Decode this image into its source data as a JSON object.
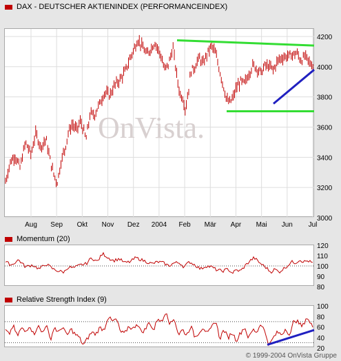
{
  "chart_data": [
    {
      "type": "candlestick",
      "title": "DAX  - DEUTSCHER AKTIENINDEX (PERFORMANCEINDEX)",
      "x_ticks": [
        "Aug",
        "Sep",
        "Okt",
        "Nov",
        "Dez",
        "2004",
        "Feb",
        "Mär",
        "Apr",
        "Mai",
        "Jun",
        "Jul"
      ],
      "y_ticks": [
        3000,
        3200,
        3400,
        3600,
        3800,
        4000,
        4200
      ],
      "ylim": [
        3000,
        4250
      ],
      "watermark": "OnVista.",
      "keypoints": [
        [
          0,
          3220
        ],
        [
          8,
          3370
        ],
        [
          15,
          3410
        ],
        [
          22,
          3330
        ],
        [
          30,
          3500
        ],
        [
          38,
          3420
        ],
        [
          45,
          3560
        ],
        [
          52,
          3470
        ],
        [
          60,
          3520
        ],
        [
          64,
          3420
        ],
        [
          70,
          3300
        ],
        [
          76,
          3230
        ],
        [
          82,
          3380
        ],
        [
          88,
          3470
        ],
        [
          92,
          3560
        ],
        [
          98,
          3620
        ],
        [
          104,
          3580
        ],
        [
          110,
          3640
        ],
        [
          118,
          3520
        ],
        [
          124,
          3690
        ],
        [
          130,
          3680
        ],
        [
          138,
          3760
        ],
        [
          145,
          3830
        ],
        [
          152,
          3810
        ],
        [
          160,
          3880
        ],
        [
          168,
          3920
        ],
        [
          175,
          3970
        ],
        [
          182,
          4060
        ],
        [
          188,
          4120
        ],
        [
          193,
          4180
        ],
        [
          200,
          4130
        ],
        [
          206,
          4080
        ],
        [
          212,
          4120
        ],
        [
          218,
          4160
        ],
        [
          226,
          4080
        ],
        [
          232,
          3980
        ],
        [
          238,
          4020
        ],
        [
          244,
          4130
        ],
        [
          249,
          3960
        ],
        [
          254,
          3820
        ],
        [
          258,
          3800
        ],
        [
          262,
          3720
        ],
        [
          266,
          3820
        ],
        [
          270,
          3970
        ],
        [
          276,
          4000
        ],
        [
          282,
          4060
        ],
        [
          288,
          4020
        ],
        [
          294,
          4090
        ],
        [
          300,
          4140
        ],
        [
          305,
          4100
        ],
        [
          309,
          4030
        ],
        [
          313,
          3950
        ],
        [
          318,
          3860
        ],
        [
          322,
          3780
        ],
        [
          326,
          3760
        ],
        [
          331,
          3790
        ],
        [
          336,
          3860
        ],
        [
          342,
          3900
        ],
        [
          348,
          3890
        ],
        [
          354,
          3950
        ],
        [
          360,
          4010
        ],
        [
          366,
          3990
        ],
        [
          372,
          3960
        ],
        [
          378,
          4010
        ],
        [
          384,
          4000
        ],
        [
          390,
          3980
        ],
        [
          396,
          4040
        ],
        [
          402,
          4060
        ],
        [
          410,
          4070
        ],
        [
          418,
          4080
        ],
        [
          424,
          4090
        ],
        [
          430,
          4040
        ],
        [
          436,
          4070
        ],
        [
          442,
          4030
        ],
        [
          449,
          4000
        ]
      ],
      "lines": [
        {
          "color": "#33dd33",
          "points": [
            [
              250,
              4175
            ],
            [
              449,
              4140
            ]
          ]
        },
        {
          "color": "#33dd33",
          "points": [
            [
              322,
              3705
            ],
            [
              449,
              3705
            ]
          ]
        },
        {
          "color": "#2020c0",
          "points": [
            [
              390,
              3755
            ],
            [
              449,
              3980
            ]
          ]
        }
      ]
    },
    {
      "type": "line",
      "title": "Momentum (20)",
      "y_ticks": [
        80,
        90,
        100,
        110,
        120
      ],
      "ylim": [
        80,
        120
      ],
      "reference": 100,
      "keypoints": [
        [
          0,
          104
        ],
        [
          10,
          101
        ],
        [
          20,
          106
        ],
        [
          30,
          99
        ],
        [
          40,
          101
        ],
        [
          50,
          97
        ],
        [
          60,
          102
        ],
        [
          70,
          97
        ],
        [
          78,
          95
        ],
        [
          86,
          94
        ],
        [
          92,
          99
        ],
        [
          100,
          98
        ],
        [
          110,
          101
        ],
        [
          118,
          102
        ],
        [
          126,
          108
        ],
        [
          134,
          104
        ],
        [
          142,
          112
        ],
        [
          150,
          108
        ],
        [
          158,
          105
        ],
        [
          166,
          107
        ],
        [
          174,
          103
        ],
        [
          182,
          104
        ],
        [
          190,
          108
        ],
        [
          198,
          106
        ],
        [
          206,
          104
        ],
        [
          214,
          102
        ],
        [
          222,
          104
        ],
        [
          230,
          103
        ],
        [
          238,
          100
        ],
        [
          246,
          103
        ],
        [
          254,
          103
        ],
        [
          260,
          99
        ],
        [
          268,
          104
        ],
        [
          276,
          101
        ],
        [
          284,
          97
        ],
        [
          292,
          100
        ],
        [
          300,
          99
        ],
        [
          308,
          96
        ],
        [
          316,
          95
        ],
        [
          324,
          97
        ],
        [
          330,
          93
        ],
        [
          336,
          96
        ],
        [
          342,
          95
        ],
        [
          350,
          101
        ],
        [
          356,
          105
        ],
        [
          362,
          108
        ],
        [
          368,
          104
        ],
        [
          374,
          101
        ],
        [
          380,
          98
        ],
        [
          386,
          94
        ],
        [
          392,
          97
        ],
        [
          398,
          94
        ],
        [
          404,
          97
        ],
        [
          410,
          100
        ],
        [
          416,
          104
        ],
        [
          422,
          103
        ],
        [
          428,
          106
        ],
        [
          434,
          104
        ],
        [
          440,
          105
        ],
        [
          449,
          102
        ]
      ]
    },
    {
      "type": "line",
      "title": "Relative Strength Index (9)",
      "y_ticks": [
        20,
        40,
        60,
        80,
        100
      ],
      "ylim": [
        20,
        100
      ],
      "reference_lines": [
        30,
        70
      ],
      "keypoints": [
        [
          0,
          55
        ],
        [
          6,
          45
        ],
        [
          12,
          63
        ],
        [
          18,
          42
        ],
        [
          24,
          58
        ],
        [
          30,
          50
        ],
        [
          36,
          64
        ],
        [
          42,
          45
        ],
        [
          48,
          63
        ],
        [
          54,
          48
        ],
        [
          60,
          65
        ],
        [
          66,
          35
        ],
        [
          72,
          60
        ],
        [
          78,
          48
        ],
        [
          84,
          62
        ],
        [
          90,
          42
        ],
        [
          96,
          56
        ],
        [
          102,
          46
        ],
        [
          108,
          40
        ],
        [
          114,
          25
        ],
        [
          120,
          38
        ],
        [
          126,
          50
        ],
        [
          132,
          46
        ],
        [
          138,
          59
        ],
        [
          144,
          54
        ],
        [
          150,
          80
        ],
        [
          156,
          70
        ],
        [
          162,
          75
        ],
        [
          168,
          50
        ],
        [
          174,
          47
        ],
        [
          180,
          62
        ],
        [
          186,
          55
        ],
        [
          192,
          68
        ],
        [
          198,
          50
        ],
        [
          204,
          55
        ],
        [
          210,
          70
        ],
        [
          216,
          52
        ],
        [
          222,
          78
        ],
        [
          228,
          68
        ],
        [
          234,
          92
        ],
        [
          240,
          64
        ],
        [
          246,
          77
        ],
        [
          252,
          45
        ],
        [
          258,
          55
        ],
        [
          264,
          44
        ],
        [
          270,
          62
        ],
        [
          276,
          40
        ],
        [
          282,
          50
        ],
        [
          288,
          60
        ],
        [
          294,
          46
        ],
        [
          300,
          58
        ],
        [
          306,
          73
        ],
        [
          312,
          37
        ],
        [
          318,
          55
        ],
        [
          324,
          39
        ],
        [
          330,
          50
        ],
        [
          336,
          34
        ],
        [
          342,
          48
        ],
        [
          348,
          60
        ],
        [
          354,
          38
        ],
        [
          360,
          55
        ],
        [
          366,
          50
        ],
        [
          372,
          68
        ],
        [
          378,
          48
        ],
        [
          384,
          25
        ],
        [
          390,
          40
        ],
        [
          396,
          50
        ],
        [
          402,
          45
        ],
        [
          408,
          58
        ],
        [
          414,
          42
        ],
        [
          420,
          75
        ],
        [
          426,
          68
        ],
        [
          432,
          60
        ],
        [
          438,
          79
        ],
        [
          444,
          65
        ],
        [
          449,
          58
        ]
      ],
      "lines": [
        {
          "color": "#2020c0",
          "points": [
            [
              381,
              26
            ],
            [
              449,
              54
            ]
          ]
        }
      ]
    }
  ],
  "footer": "© 1999-2004 OnVista Gruppe"
}
